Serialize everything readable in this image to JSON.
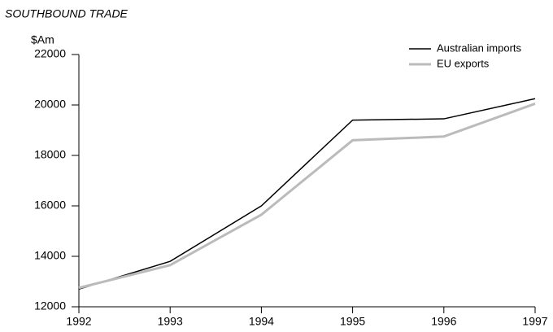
{
  "chart_data": {
    "type": "line",
    "title": "SOUTHBOUND TRADE",
    "y_label": "$Am",
    "x": [
      1992,
      1993,
      1994,
      1995,
      1996,
      1997
    ],
    "series": [
      {
        "name": "Australian imports",
        "color": "#000000",
        "values": [
          12700,
          13800,
          16000,
          19400,
          19450,
          20250
        ]
      },
      {
        "name": "EU exports",
        "color": "#bbbbbb",
        "values": [
          12750,
          13650,
          15650,
          18600,
          18750,
          20050
        ]
      }
    ],
    "xlim": [
      1992,
      1997
    ],
    "xticks": [
      1992,
      1993,
      1994,
      1995,
      1996,
      1997
    ],
    "ylim": [
      12000,
      22000
    ],
    "yticks": [
      12000,
      14000,
      16000,
      18000,
      20000,
      22000
    ],
    "legend": "upper right"
  }
}
